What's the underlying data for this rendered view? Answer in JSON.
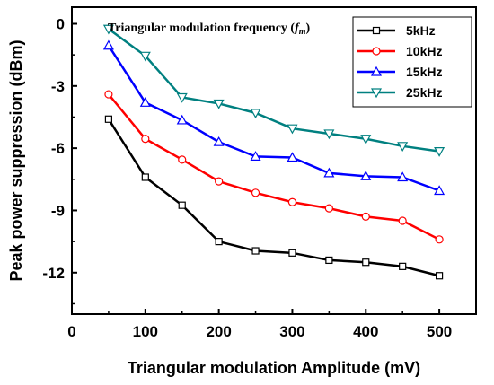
{
  "chart_data": {
    "type": "line",
    "xlabel": "Triangular modulation Amplitude (mV)",
    "ylabel": "Peak power suppression (dBm)",
    "xlim": [
      0,
      550
    ],
    "ylim": [
      -14,
      0.8
    ],
    "xticks": [
      0,
      100,
      200,
      300,
      400,
      500
    ],
    "yticks": [
      0,
      -3,
      -6,
      -9,
      -12
    ],
    "xtick_labels": [
      "0",
      "100",
      "200",
      "300",
      "400",
      "500"
    ],
    "ytick_labels": [
      "0",
      "-3",
      "-6",
      "-9",
      "-12"
    ],
    "grid": false,
    "legend": {
      "title_main": "Triangular modulation frequency (",
      "title_sym": "f",
      "title_sub": "m",
      "title_end": ")",
      "placement": "top-right"
    },
    "x": [
      50,
      100,
      150,
      200,
      250,
      300,
      350,
      400,
      450,
      500
    ],
    "series": [
      {
        "name": "5kHz",
        "color": "#000000",
        "marker": "square",
        "values": [
          -4.6,
          -7.4,
          -8.75,
          -10.5,
          -10.95,
          -11.05,
          -11.4,
          -11.5,
          -11.7,
          -12.15
        ]
      },
      {
        "name": "10kHz",
        "color": "#ff0000",
        "marker": "circle",
        "values": [
          -3.4,
          -5.55,
          -6.55,
          -7.6,
          -8.15,
          -8.6,
          -8.9,
          -9.3,
          -9.5,
          -10.4
        ]
      },
      {
        "name": "15kHz",
        "color": "#0000ff",
        "marker": "triangle-up",
        "values": [
          -1.05,
          -3.8,
          -4.65,
          -5.7,
          -6.4,
          -6.45,
          -7.2,
          -7.35,
          -7.4,
          -8.05
        ]
      },
      {
        "name": "25kHz",
        "color": "#008080",
        "marker": "triangle-down",
        "values": [
          -0.25,
          -1.55,
          -3.55,
          -3.85,
          -4.3,
          -5.05,
          -5.3,
          -5.55,
          -5.9,
          -6.15
        ]
      }
    ]
  }
}
